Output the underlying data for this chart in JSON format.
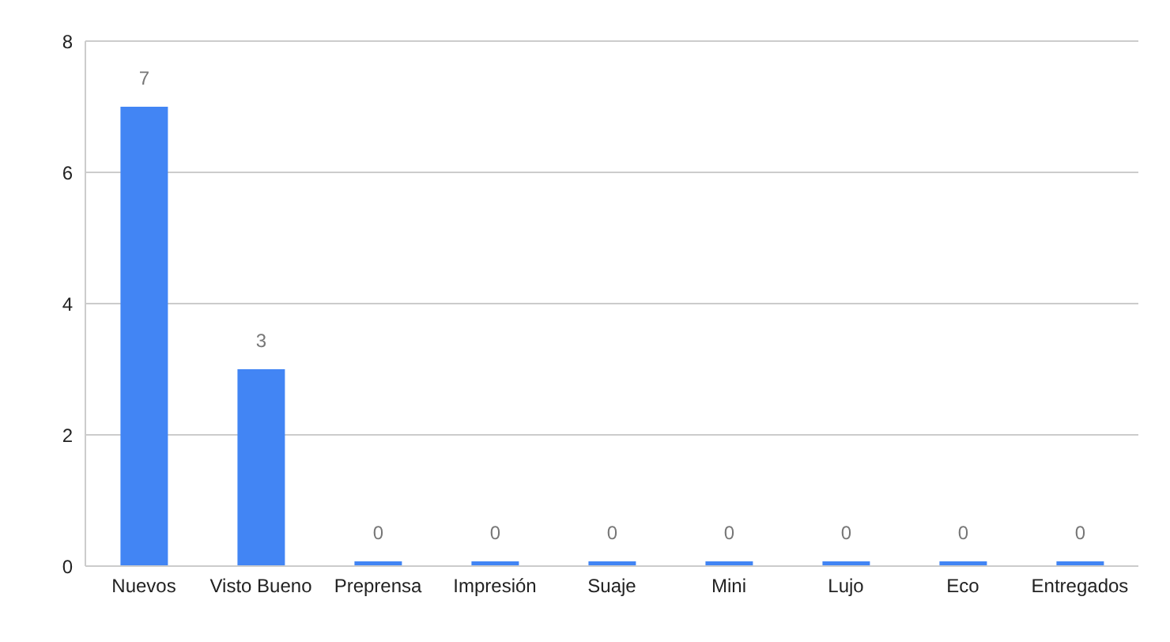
{
  "chart_data": {
    "type": "bar",
    "categories": [
      "Nuevos",
      "Visto Bueno",
      "Preprensa",
      "Impresión",
      "Suaje",
      "Mini",
      "Lujo",
      "Eco",
      "Entregados"
    ],
    "values": [
      7,
      3,
      0,
      0,
      0,
      0,
      0,
      0,
      0
    ],
    "color": "#4285f4",
    "ylim": [
      0,
      8
    ],
    "yticks": [
      0,
      2,
      4,
      6,
      8
    ],
    "grid": "y",
    "data_labels": true
  }
}
